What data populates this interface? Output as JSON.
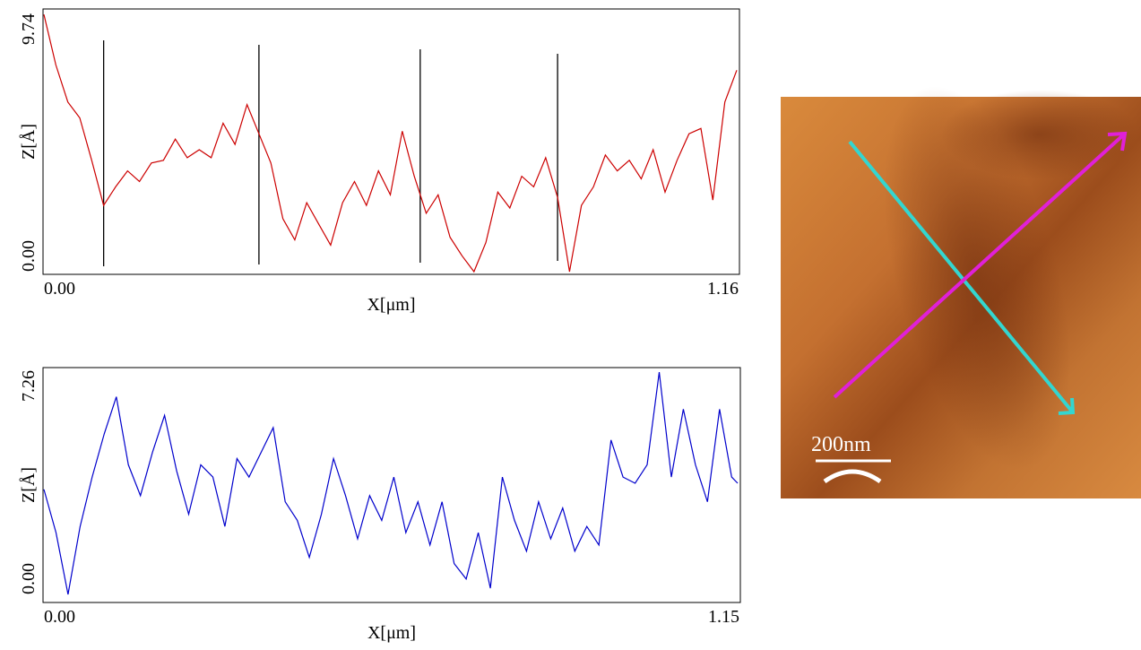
{
  "chart_data": [
    {
      "type": "line",
      "xlabel": "X[μm]",
      "ylabel": "Z[Å]",
      "color": "#cc0000",
      "xlim": [
        0,
        1.16
      ],
      "ylim": [
        0,
        9.74
      ],
      "xticks": [
        {
          "value": 0,
          "label": "0.00"
        },
        1.16
      ],
      "yticks": [
        {
          "value": 0,
          "label": "0.00"
        },
        9.74
      ],
      "vlines": [
        0.1,
        0.36,
        0.63,
        0.86
      ],
      "x": [
        0,
        0.02,
        0.04,
        0.06,
        0.08,
        0.1,
        0.12,
        0.14,
        0.16,
        0.18,
        0.2,
        0.22,
        0.24,
        0.26,
        0.28,
        0.3,
        0.32,
        0.34,
        0.36,
        0.38,
        0.4,
        0.42,
        0.44,
        0.46,
        0.48,
        0.5,
        0.52,
        0.54,
        0.56,
        0.58,
        0.6,
        0.62,
        0.64,
        0.66,
        0.68,
        0.7,
        0.72,
        0.74,
        0.76,
        0.78,
        0.8,
        0.82,
        0.84,
        0.86,
        0.88,
        0.9,
        0.92,
        0.94,
        0.96,
        0.98,
        1.0,
        1.02,
        1.04,
        1.06,
        1.08,
        1.1,
        1.12,
        1.14,
        1.16
      ],
      "values": [
        9.7,
        7.8,
        6.4,
        5.8,
        4.2,
        2.5,
        3.2,
        3.8,
        3.4,
        4.1,
        4.2,
        5.0,
        4.3,
        4.6,
        4.3,
        5.6,
        4.8,
        6.3,
        5.2,
        4.1,
        2.0,
        1.2,
        2.6,
        1.8,
        1.0,
        2.6,
        3.4,
        2.5,
        3.8,
        2.9,
        5.3,
        3.6,
        2.2,
        2.9,
        1.3,
        0.6,
        0.0,
        1.1,
        3.0,
        2.4,
        3.6,
        3.2,
        4.3,
        2.8,
        0.0,
        2.5,
        3.2,
        4.4,
        3.8,
        4.2,
        3.5,
        4.6,
        3.0,
        4.2,
        5.2,
        5.4,
        2.7,
        6.4,
        7.6
      ]
    },
    {
      "type": "line",
      "xlabel": "X[μm]",
      "ylabel": "Z[Å]",
      "color": "#0000cc",
      "xlim": [
        0,
        1.15
      ],
      "ylim": [
        0,
        7.26
      ],
      "xticks": [
        {
          "value": 0,
          "label": "0.00"
        },
        1.15
      ],
      "yticks": [
        {
          "value": 0,
          "label": "0.00"
        },
        7.26
      ],
      "x": [
        0,
        0.02,
        0.04,
        0.06,
        0.08,
        0.1,
        0.12,
        0.14,
        0.16,
        0.18,
        0.2,
        0.22,
        0.24,
        0.26,
        0.28,
        0.3,
        0.32,
        0.34,
        0.36,
        0.38,
        0.4,
        0.42,
        0.44,
        0.46,
        0.48,
        0.5,
        0.52,
        0.54,
        0.56,
        0.58,
        0.6,
        0.62,
        0.64,
        0.66,
        0.68,
        0.7,
        0.72,
        0.74,
        0.76,
        0.78,
        0.8,
        0.82,
        0.84,
        0.86,
        0.88,
        0.9,
        0.92,
        0.94,
        0.96,
        0.98,
        1.0,
        1.02,
        1.04,
        1.06,
        1.08,
        1.1,
        1.12,
        1.14,
        1.15
      ],
      "values": [
        3.4,
        2.0,
        0.0,
        2.2,
        3.8,
        5.2,
        6.4,
        4.2,
        3.2,
        4.6,
        5.8,
        4.0,
        2.6,
        4.2,
        3.8,
        2.2,
        4.4,
        3.8,
        4.6,
        5.4,
        3.0,
        2.4,
        1.2,
        2.6,
        4.4,
        3.2,
        1.8,
        3.2,
        2.4,
        3.8,
        2.0,
        3.0,
        1.6,
        3.0,
        1.0,
        0.5,
        2.0,
        0.2,
        3.8,
        2.4,
        1.4,
        3.0,
        1.8,
        2.8,
        1.4,
        2.2,
        1.6,
        5.0,
        3.8,
        3.6,
        4.2,
        7.2,
        3.8,
        6.0,
        4.2,
        3.0,
        6.0,
        3.8,
        3.6
      ]
    }
  ],
  "image": {
    "scale_label": "200nm"
  }
}
